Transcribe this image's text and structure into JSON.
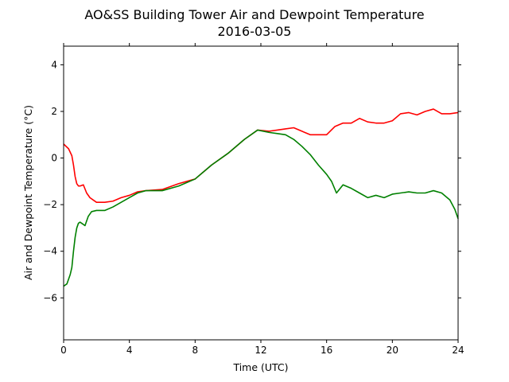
{
  "chart_data": {
    "type": "line",
    "title": "AO&SS Building Tower Air and Dewpoint Temperature",
    "subtitle": "2016-03-05",
    "xlabel": "Time (UTC)",
    "ylabel": "Air and Dewpoint Temperature (°C)",
    "xlim": [
      0,
      24
    ],
    "ylim": [
      -7.8,
      4.8
    ],
    "xticks": [
      0,
      4,
      8,
      12,
      16,
      20,
      24
    ],
    "yticks": [
      -6,
      -4,
      -2,
      0,
      2,
      4
    ],
    "grid": false,
    "legend": "none",
    "series": [
      {
        "color": "#ff0000",
        "x": [
          0,
          0.3,
          0.5,
          0.6,
          0.7,
          0.8,
          0.9,
          1.0,
          1.2,
          1.4,
          1.6,
          1.8,
          2.0,
          2.5,
          3.0,
          3.5,
          4.0,
          4.5,
          5.0,
          6.0,
          7.0,
          8.0,
          9.0,
          10.0,
          11.0,
          11.8,
          12.5,
          13.0,
          13.5,
          14.0,
          14.5,
          15.0,
          15.5,
          16.0,
          16.5,
          17.0,
          17.5,
          18.0,
          18.5,
          19.0,
          19.5,
          20.0,
          20.5,
          21.0,
          21.5,
          22.0,
          22.5,
          23.0,
          23.5,
          24.0
        ],
        "y": [
          0.6,
          0.4,
          0.1,
          -0.3,
          -0.8,
          -1.1,
          -1.2,
          -1.2,
          -1.15,
          -1.5,
          -1.7,
          -1.8,
          -1.9,
          -1.9,
          -1.85,
          -1.7,
          -1.6,
          -1.45,
          -1.4,
          -1.35,
          -1.1,
          -0.9,
          -0.3,
          0.2,
          0.8,
          1.2,
          1.15,
          1.2,
          1.25,
          1.3,
          1.15,
          1.0,
          1.0,
          1.0,
          1.35,
          1.5,
          1.5,
          1.7,
          1.55,
          1.5,
          1.5,
          1.6,
          1.9,
          1.95,
          1.85,
          2.0,
          2.1,
          1.9,
          1.9,
          1.95
        ]
      },
      {
        "color": "#008000",
        "x": [
          0,
          0.2,
          0.4,
          0.5,
          0.6,
          0.7,
          0.8,
          0.9,
          1.0,
          1.1,
          1.3,
          1.5,
          1.7,
          2.0,
          2.5,
          3.0,
          3.5,
          4.0,
          4.5,
          5.0,
          6.0,
          7.0,
          8.0,
          9.0,
          10.0,
          11.0,
          11.8,
          12.5,
          13.0,
          13.5,
          14.0,
          14.5,
          15.0,
          15.5,
          16.0,
          16.3,
          16.6,
          17.0,
          17.5,
          18.0,
          18.5,
          19.0,
          19.5,
          20.0,
          20.5,
          21.0,
          21.5,
          22.0,
          22.5,
          23.0,
          23.5,
          23.8,
          24.0
        ],
        "y": [
          -5.5,
          -5.4,
          -5.0,
          -4.7,
          -4.0,
          -3.4,
          -3.0,
          -2.8,
          -2.75,
          -2.8,
          -2.9,
          -2.5,
          -2.3,
          -2.25,
          -2.25,
          -2.1,
          -1.9,
          -1.7,
          -1.5,
          -1.4,
          -1.4,
          -1.2,
          -0.9,
          -0.3,
          0.2,
          0.8,
          1.2,
          1.1,
          1.05,
          1.0,
          0.8,
          0.5,
          0.15,
          -0.3,
          -0.7,
          -1.0,
          -1.5,
          -1.15,
          -1.3,
          -1.5,
          -1.7,
          -1.6,
          -1.7,
          -1.55,
          -1.5,
          -1.45,
          -1.5,
          -1.5,
          -1.4,
          -1.5,
          -1.8,
          -2.2,
          -2.6
        ]
      }
    ]
  }
}
